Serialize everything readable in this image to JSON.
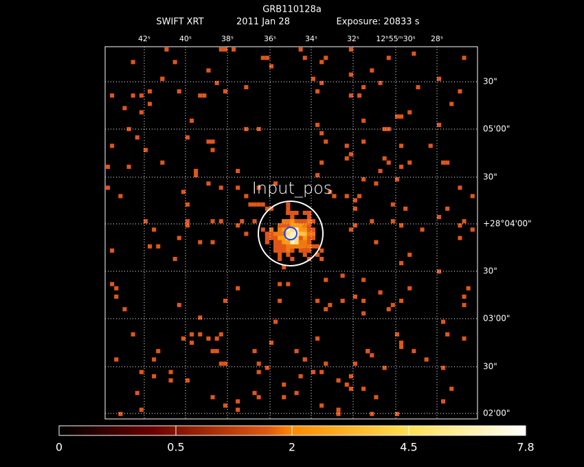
{
  "header": {
    "title": "GRB110128a",
    "instrument": "SWIFT XRT",
    "date": "2011 Jan 28",
    "exposure": "Exposure: 20833 s"
  },
  "ra_labels": [
    "42ˢ",
    "40ˢ",
    "38ˢ",
    "36ˢ",
    "34ˢ",
    "32ˢ",
    "12ʰ55ᵐ30ˢ",
    "28ˢ"
  ],
  "dec_labels": [
    "30\"",
    "05'00\"",
    "30\"",
    "+28°04'00\"",
    "30\"",
    "03'00\"",
    "30\"",
    "02'00\""
  ],
  "annotation": "Input_pos",
  "colorbar": {
    "labels": [
      "0",
      "0.5",
      "2",
      "4.5",
      "7.8"
    ]
  }
}
